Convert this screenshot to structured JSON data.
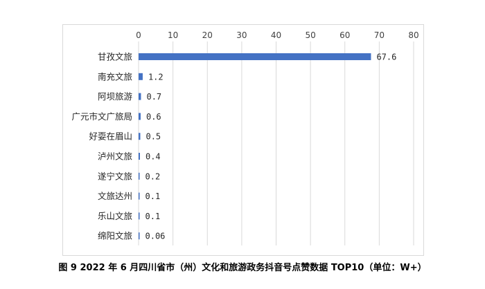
{
  "caption": "图 9  2022 年 6 月四川省市（州）文化和旅游政务抖音号点赞数据 TOP10（单位：W+）",
  "chart_data": {
    "type": "bar",
    "orientation": "horizontal",
    "categories": [
      "甘孜文旅",
      "南充文旅",
      "阿坝旅游",
      "广元市文广旅局",
      "好耍在眉山",
      "泸州文旅",
      "遂宁文旅",
      "文旅达州",
      "乐山文旅",
      "绵阳文旅"
    ],
    "values": [
      67.6,
      1.2,
      0.7,
      0.6,
      0.5,
      0.4,
      0.2,
      0.1,
      0.1,
      0.06
    ],
    "value_labels": [
      "67.6",
      "1.2",
      "0.7",
      "0.6",
      "0.5",
      "0.4",
      "0.2",
      "0.1",
      "0.1",
      "0.06"
    ],
    "xlim": [
      0,
      80
    ],
    "x_ticks": [
      "0",
      "10",
      "20",
      "30",
      "40",
      "50",
      "60",
      "70",
      "80"
    ],
    "x_axis_position": "top",
    "grid": true,
    "legend": "none",
    "bar_color": "#4472c4",
    "grid_color": "#d9d9d9"
  }
}
